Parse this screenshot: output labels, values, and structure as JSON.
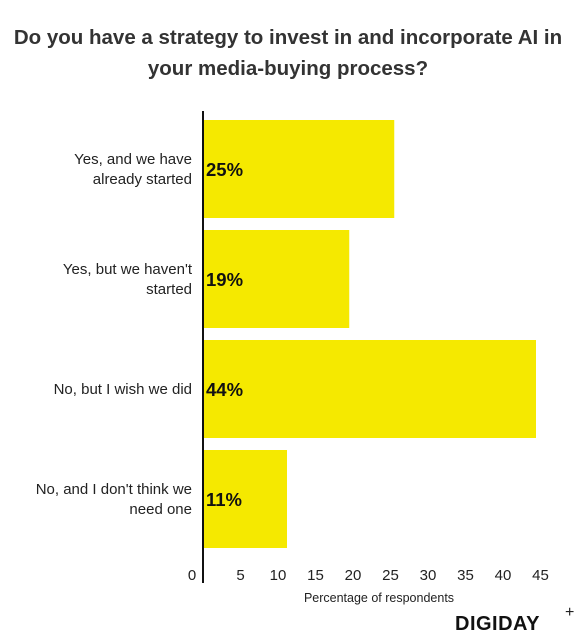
{
  "title": {
    "line1": "Do you have a strategy to invest in and incorporate AI in",
    "line2": "your media-buying process?"
  },
  "brand": {
    "name": "DIGIDAY",
    "plus": "+"
  },
  "colors": {
    "bar": "#f5e900",
    "axis": "#111111",
    "text": "#333333"
  },
  "chart_data": {
    "type": "bar",
    "orientation": "horizontal",
    "categories": [
      [
        "Yes, and we have",
        "already started"
      ],
      [
        "Yes, but we haven't",
        "started"
      ],
      [
        "No, but I wish we did"
      ],
      [
        "No, and I don't think we",
        "need one"
      ]
    ],
    "values": [
      25,
      19,
      44,
      11
    ],
    "bar_extent": [
      25.5,
      19.5,
      44.4,
      11.2
    ],
    "data_labels": [
      "25%",
      "19%",
      "44%",
      "11%"
    ],
    "xlabel": "Percentage of respondents",
    "ylabel": "",
    "xlim": [
      0,
      45.8
    ],
    "xticks": [
      0,
      5,
      10,
      15,
      20,
      25,
      30,
      35,
      40,
      45
    ],
    "xtick_labels": [
      "0",
      "5",
      "10",
      "15",
      "20",
      "25",
      "30",
      "35",
      "40",
      "45"
    ],
    "grid": false,
    "legend": "none"
  }
}
